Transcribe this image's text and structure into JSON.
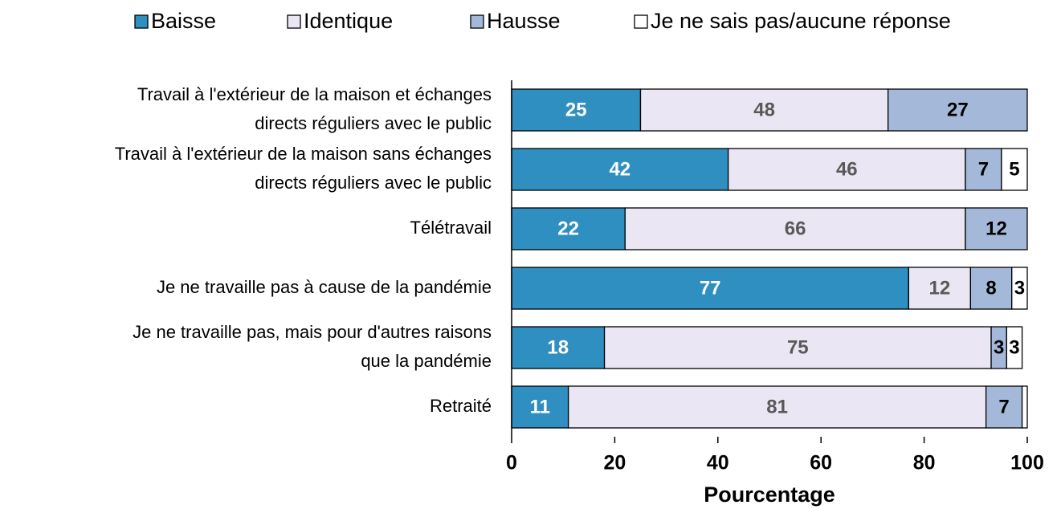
{
  "chart_data": {
    "type": "stacked_barh",
    "categories": [
      "Travail à l'extérieur de la maison et échanges\ndirects réguliers avec le public",
      "Travail à l'extérieur de la maison sans échanges\ndirects réguliers avec le public",
      "Télétravail",
      "Je ne travaille pas à cause de la pandémie",
      "Je ne travaille pas, mais pour d'autres raisons\nque la pandémie",
      "Retraité"
    ],
    "series": [
      {
        "name": "Baisse",
        "color": "#2e8fc0",
        "label_color": "#ffffff",
        "values": [
          25,
          42,
          22,
          77,
          18,
          11
        ]
      },
      {
        "name": "Identique",
        "color": "#ebe6f3",
        "label_color": "#595959",
        "values": [
          48,
          46,
          66,
          12,
          75,
          81
        ]
      },
      {
        "name": "Hausse",
        "color": "#a4b9d9",
        "label_color": "#000000",
        "values": [
          27,
          7,
          12,
          8,
          3,
          7
        ]
      },
      {
        "name": "Je ne sais pas/aucune réponse",
        "color": "#ffffff",
        "label_color": "#000000",
        "values": [
          0,
          5,
          0,
          3,
          3,
          1
        ],
        "value_labels": [
          null,
          "5",
          null,
          "3",
          "3",
          null
        ]
      }
    ],
    "xlabel": "Pourcentage",
    "xlim": [
      0,
      100
    ],
    "xticks": [
      0,
      20,
      40,
      60,
      80,
      100
    ],
    "legend": "top"
  }
}
